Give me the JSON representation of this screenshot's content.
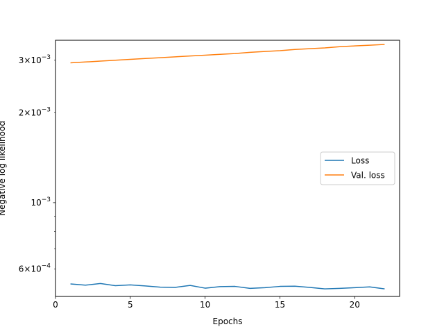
{
  "chart_data": {
    "type": "line",
    "xlabel": "Epochs",
    "ylabel": "Negative log likelihood",
    "xlim": [
      0,
      23
    ],
    "ylim": [
      0.000485,
      0.0035
    ],
    "yscale": "log",
    "grid": false,
    "legend_position": "center-right",
    "xticks": [
      0,
      5,
      10,
      15,
      20
    ],
    "xtick_labels": [
      "0",
      "5",
      "10",
      "15",
      "20"
    ],
    "ytick_major": [
      {
        "value": 0.001,
        "base": "10",
        "exp": "−3"
      }
    ],
    "ytick_minor_labeled": [
      {
        "value": 0.0006,
        "mant": "6",
        "base": "10",
        "exp": "−4"
      },
      {
        "value": 0.002,
        "mant": "2",
        "base": "10",
        "exp": "−3"
      },
      {
        "value": 0.003,
        "mant": "3",
        "base": "10",
        "exp": "−3"
      }
    ],
    "ytick_minor_unlabeled": [
      0.0007,
      0.0008,
      0.0009
    ],
    "x": [
      1,
      2,
      3,
      4,
      5,
      6,
      7,
      8,
      9,
      10,
      11,
      12,
      13,
      14,
      15,
      16,
      17,
      18,
      19,
      20,
      21,
      22
    ],
    "series": [
      {
        "name": "Loss",
        "color": "#1f77b4",
        "values": [
          0.000534,
          0.000529,
          0.000536,
          0.000527,
          0.00053,
          0.000526,
          0.000521,
          0.00052,
          0.000528,
          0.000517,
          0.000523,
          0.000524,
          0.000516,
          0.000519,
          0.000524,
          0.000525,
          0.00052,
          0.000514,
          0.000516,
          0.000519,
          0.000522,
          0.000514
        ]
      },
      {
        "name": "Val. loss",
        "color": "#ff7f0e",
        "values": [
          0.00294,
          0.00296,
          0.00298,
          0.003,
          0.00302,
          0.00304,
          0.00306,
          0.00308,
          0.0031,
          0.00312,
          0.00314,
          0.00316,
          0.00319,
          0.00321,
          0.00323,
          0.00326,
          0.00328,
          0.0033,
          0.00333,
          0.00335,
          0.00337,
          0.00339
        ]
      }
    ]
  }
}
